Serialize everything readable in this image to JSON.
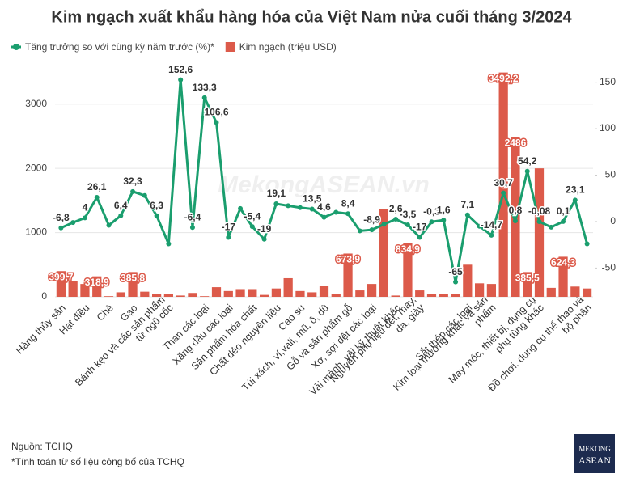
{
  "chart_data": {
    "type": "bar",
    "title": "Kim ngạch xuất khẩu hàng hóa của Việt Nam nửa cuối tháng 3/2024",
    "watermark": "MekongASEAN.vn",
    "categories": [
      "Hàng thủy sản",
      null,
      "Hạt điều",
      null,
      "Chè",
      null,
      "Gạo",
      null,
      null,
      "Bánh kẹo và các sản phẩm\ntừ ngũ cốc",
      null,
      null,
      "Than các loại",
      null,
      "Xăng dầu các loại",
      null,
      "Sản phẩm hóa chất",
      null,
      "Chất dẻo nguyên liệu",
      null,
      "Cao su",
      null,
      "Túi xách, ví,vali, mũ, ô, dù",
      null,
      "Gỗ và sản phẩm gỗ",
      null,
      "Xơ, sợi dệt các loại",
      null,
      "Vải mành, vải kỹ thuật khác",
      null,
      "Nguyên phụ liệu dệt, may,\nda, giày",
      null,
      null,
      null,
      "Sắt thép các loại",
      null,
      "Kim loại thường khác và sản\nphẩm",
      null,
      null,
      null,
      "Máy móc, thiết bị, dụng cụ\nphụ tùng khác",
      null,
      null,
      null,
      "Đồ chơi, dụng cụ thể thao và\nbộ phận"
    ],
    "series": [
      {
        "name": "Tăng trưởng so với cùng kỳ năm trước (%)*",
        "color": "#1a9e6e",
        "type": "line",
        "axis": "y2",
        "values": [
          -6.8,
          -1,
          4,
          26.1,
          -4,
          6.4,
          32.3,
          28,
          6.3,
          -24,
          152.6,
          -6.4,
          133.3,
          106.6,
          -17,
          14,
          -5.4,
          -19,
          19.1,
          17,
          15,
          13.5,
          4.6,
          10,
          8.4,
          -10,
          -8.9,
          -3,
          2.6,
          -3.5,
          -17,
          -0.3,
          1.6,
          -65,
          7.1,
          -5,
          -14.7,
          30.7,
          0.8,
          54.2,
          -0.08,
          -6,
          0.1,
          23.1,
          -24
        ],
        "value_labels": [
          "-6,8",
          null,
          "4",
          "26,1",
          null,
          "6,4",
          "32,3",
          null,
          "6,3",
          null,
          "152,6",
          "-6,4",
          "133,3",
          "106,6",
          "-17",
          null,
          "-5,4",
          "-19",
          "19,1",
          null,
          null,
          "13,5",
          "4,6",
          null,
          "8,4",
          null,
          "-8,9",
          null,
          "2,6",
          "-3,5",
          "-17",
          "-0,3",
          "1,6",
          "-65",
          "7,1",
          null,
          "-14,7",
          "30,7",
          "0,8",
          "54,2",
          "-0,08",
          null,
          "0,1",
          "23,1",
          null
        ]
      },
      {
        "name": "Kim ngạch (triệu USD)",
        "color": "#dc5a4a",
        "type": "bar",
        "values": [
          399.7,
          250,
          200,
          318.9,
          10,
          70,
          385.8,
          80,
          50,
          40,
          20,
          60,
          10,
          150,
          90,
          120,
          120,
          30,
          130,
          290,
          90,
          70,
          170,
          50,
          673.9,
          100,
          200,
          1360,
          20,
          834.9,
          100,
          40,
          50,
          40,
          500,
          210,
          200,
          3492.2,
          2486,
          385.5,
          2000,
          140,
          624.3,
          160,
          130
        ],
        "value_labels": [
          "399,7",
          null,
          null,
          "318,9",
          null,
          null,
          "385,8",
          null,
          null,
          null,
          null,
          null,
          null,
          null,
          null,
          null,
          null,
          null,
          null,
          null,
          null,
          null,
          null,
          null,
          "673,9",
          null,
          null,
          null,
          null,
          "834,9",
          null,
          null,
          null,
          null,
          null,
          null,
          null,
          "3492,2",
          "2486",
          "385,5",
          null,
          null,
          "624,3",
          null,
          null
        ]
      }
    ],
    "ylim": [
      0,
      3500
    ],
    "yticks": [
      0,
      1000,
      2000,
      3000
    ],
    "y2lim": [
      -81,
      161
    ],
    "y2ticks": [
      -50,
      0,
      50,
      100,
      150
    ],
    "grid": true,
    "legend": "top",
    "source": "Nguồn: TCHQ",
    "note": "*Tính toán từ số liệu công bố của TCHQ",
    "logo": [
      "MEKONG",
      "ASEAN"
    ]
  }
}
